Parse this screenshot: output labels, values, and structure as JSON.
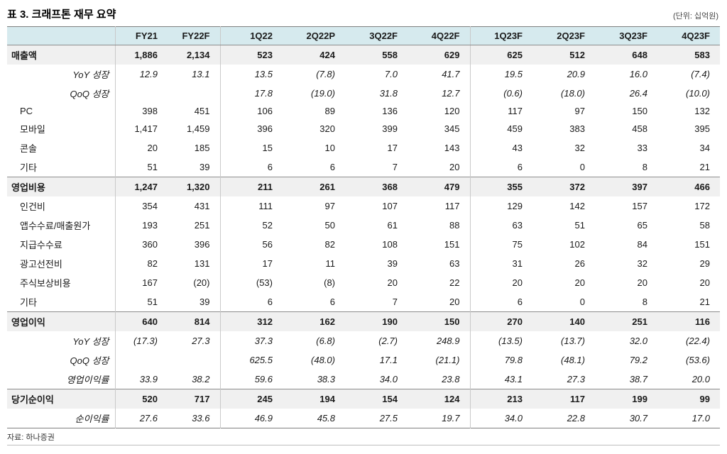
{
  "title": "표 3. 크래프톤 재무 요약",
  "unit_note": "(단위: 십억원)",
  "source": "자료: 하나증권",
  "colors": {
    "header_bg": "#d6eaee",
    "section_bg": "#f0f0f0",
    "border_strong": "#7f7f7f",
    "border_light": "#c9c9c9"
  },
  "table": {
    "headers": [
      "",
      "FY21",
      "FY22F",
      "1Q22",
      "2Q22P",
      "3Q22F",
      "4Q22F",
      "1Q23F",
      "2Q23F",
      "3Q23F",
      "4Q23F"
    ],
    "rows": [
      {
        "label": "매출액",
        "style": "section",
        "values": [
          "1,886",
          "2,134",
          "523",
          "424",
          "558",
          "629",
          "625",
          "512",
          "648",
          "583"
        ]
      },
      {
        "label": "YoY 성장",
        "style": "sub",
        "values": [
          "12.9",
          "13.1",
          "13.5",
          "(7.8)",
          "7.0",
          "41.7",
          "19.5",
          "20.9",
          "16.0",
          "(7.4)"
        ]
      },
      {
        "label": "QoQ 성장",
        "style": "sub",
        "values": [
          "",
          "",
          "17.8",
          "(19.0)",
          "31.8",
          "12.7",
          "(0.6)",
          "(18.0)",
          "26.4",
          "(10.0)"
        ]
      },
      {
        "label": "PC",
        "style": "normal",
        "values": [
          "398",
          "451",
          "106",
          "89",
          "136",
          "120",
          "117",
          "97",
          "150",
          "132"
        ]
      },
      {
        "label": "모바일",
        "style": "normal",
        "values": [
          "1,417",
          "1,459",
          "396",
          "320",
          "399",
          "345",
          "459",
          "383",
          "458",
          "395"
        ]
      },
      {
        "label": "콘솔",
        "style": "normal",
        "values": [
          "20",
          "185",
          "15",
          "10",
          "17",
          "143",
          "43",
          "32",
          "33",
          "34"
        ]
      },
      {
        "label": "기타",
        "style": "normal",
        "values": [
          "51",
          "39",
          "6",
          "6",
          "7",
          "20",
          "6",
          "0",
          "8",
          "21"
        ]
      },
      {
        "label": "영업비용",
        "style": "section",
        "values": [
          "1,247",
          "1,320",
          "211",
          "261",
          "368",
          "479",
          "355",
          "372",
          "397",
          "466"
        ]
      },
      {
        "label": "인건비",
        "style": "normal",
        "values": [
          "354",
          "431",
          "111",
          "97",
          "107",
          "117",
          "129",
          "142",
          "157",
          "172"
        ]
      },
      {
        "label": "앱수수료/매출원가",
        "style": "normal",
        "values": [
          "193",
          "251",
          "52",
          "50",
          "61",
          "88",
          "63",
          "51",
          "65",
          "58"
        ]
      },
      {
        "label": "지급수수료",
        "style": "normal",
        "values": [
          "360",
          "396",
          "56",
          "82",
          "108",
          "151",
          "75",
          "102",
          "84",
          "151"
        ]
      },
      {
        "label": "광고선전비",
        "style": "normal",
        "values": [
          "82",
          "131",
          "17",
          "11",
          "39",
          "63",
          "31",
          "26",
          "32",
          "29"
        ]
      },
      {
        "label": "주식보상비용",
        "style": "normal",
        "values": [
          "167",
          "(20)",
          "(53)",
          "(8)",
          "20",
          "22",
          "20",
          "20",
          "20",
          "20"
        ]
      },
      {
        "label": "기타",
        "style": "normal",
        "values": [
          "51",
          "39",
          "6",
          "6",
          "7",
          "20",
          "6",
          "0",
          "8",
          "21"
        ]
      },
      {
        "label": "영업이익",
        "style": "section",
        "values": [
          "640",
          "814",
          "312",
          "162",
          "190",
          "150",
          "270",
          "140",
          "251",
          "116"
        ]
      },
      {
        "label": "YoY 성장",
        "style": "sub",
        "values": [
          "(17.3)",
          "27.3",
          "37.3",
          "(6.8)",
          "(2.7)",
          "248.9",
          "(13.5)",
          "(13.7)",
          "32.0",
          "(22.4)"
        ]
      },
      {
        "label": "QoQ 성장",
        "style": "sub",
        "values": [
          "",
          "",
          "625.5",
          "(48.0)",
          "17.1",
          "(21.1)",
          "79.8",
          "(48.1)",
          "79.2",
          "(53.6)"
        ]
      },
      {
        "label": "영업이익률",
        "style": "sub",
        "values": [
          "33.9",
          "38.2",
          "59.6",
          "38.3",
          "34.0",
          "23.8",
          "43.1",
          "27.3",
          "38.7",
          "20.0"
        ]
      },
      {
        "label": "당기순이익",
        "style": "section",
        "values": [
          "520",
          "717",
          "245",
          "194",
          "154",
          "124",
          "213",
          "117",
          "199",
          "99"
        ]
      },
      {
        "label": "순이익률",
        "style": "sub",
        "values": [
          "27.6",
          "33.6",
          "46.9",
          "45.8",
          "27.5",
          "19.7",
          "34.0",
          "22.8",
          "30.7",
          "17.0"
        ]
      }
    ]
  }
}
